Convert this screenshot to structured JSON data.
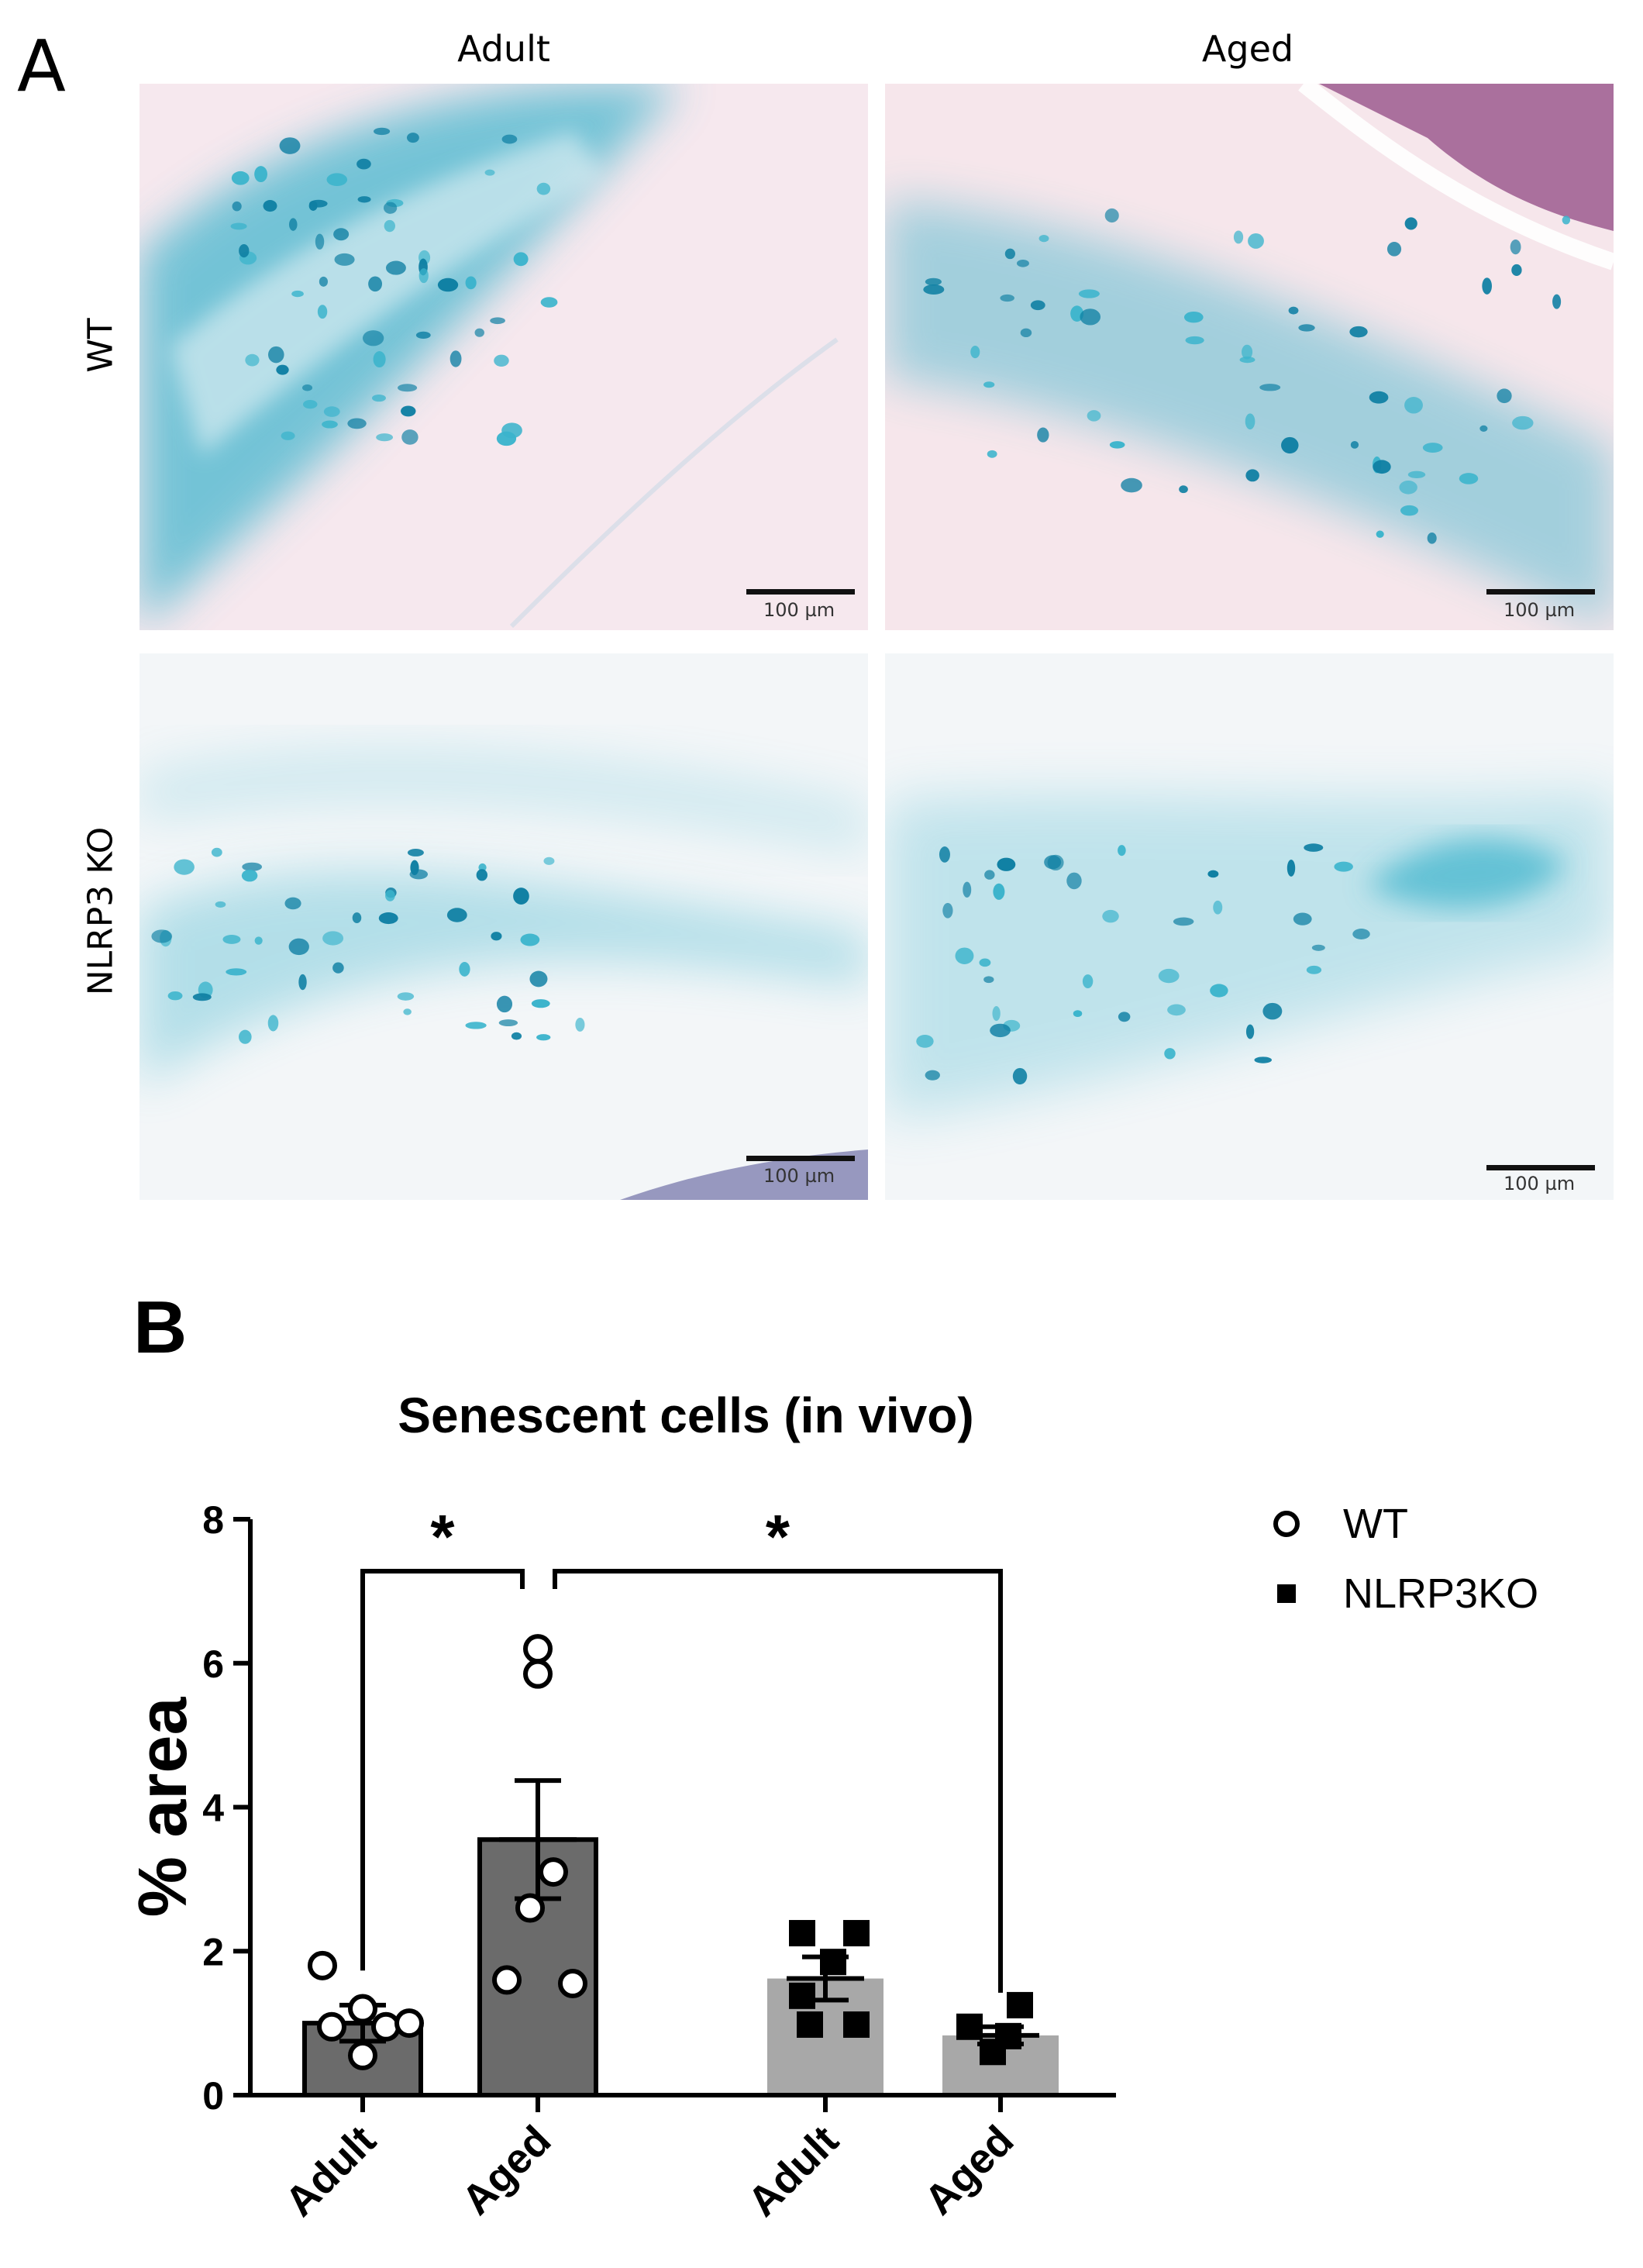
{
  "panel_a": {
    "letter": "A",
    "columns": [
      "Adult",
      "Aged"
    ],
    "rows": [
      "WT",
      "NLRP3 KO"
    ],
    "scale_bar_label": "100 µm",
    "stain_colors": {
      "blue": "#3cb4cc",
      "dark_blue": "#0f7fa3",
      "pink_bg": "#f5e6ec",
      "white_bg": "#f4f7f9",
      "purple": "#9c5a8f"
    }
  },
  "panel_b": {
    "letter": "B"
  },
  "chart_data": {
    "type": "bar",
    "title": "Senescent cells (in vivo)",
    "ylabel": "% area",
    "xlabel": "",
    "ylim": [
      0,
      8
    ],
    "yticks": [
      0,
      2,
      4,
      6,
      8
    ],
    "categories": [
      "Adult",
      "Aged",
      "Adult",
      "Aged"
    ],
    "groups": [
      {
        "genotype": "WT",
        "age": "Adult",
        "mean": 1.0,
        "sem": 0.25,
        "color": "#6b6b6b",
        "marker": "circle",
        "points": [
          1.8,
          1.2,
          0.95,
          1.0,
          0.55,
          0.95
        ]
      },
      {
        "genotype": "WT",
        "age": "Aged",
        "mean": 3.55,
        "sem": 0.82,
        "color": "#6b6b6b",
        "marker": "circle",
        "points": [
          6.2,
          5.85,
          3.1,
          2.6,
          1.6,
          1.55
        ]
      },
      {
        "genotype": "NLRP3KO",
        "age": "Adult",
        "mean": 1.62,
        "sem": 0.3,
        "color": "#a8a8a8",
        "marker": "square",
        "points": [
          2.25,
          2.25,
          1.85,
          1.38,
          0.98,
          0.98
        ]
      },
      {
        "genotype": "NLRP3KO",
        "age": "Aged",
        "mean": 0.83,
        "sem": 0.12,
        "color": "#a8a8a8",
        "marker": "square",
        "points": [
          1.25,
          0.95,
          0.82,
          0.6
        ]
      }
    ],
    "significance": [
      {
        "from": 0,
        "to": 1,
        "label": "*"
      },
      {
        "from": 1,
        "to": 3,
        "label": "*"
      }
    ],
    "legend": {
      "placement": "right",
      "items": [
        {
          "label": "WT",
          "marker": "circle"
        },
        {
          "label": "NLRP3KO",
          "marker": "square"
        }
      ]
    }
  }
}
